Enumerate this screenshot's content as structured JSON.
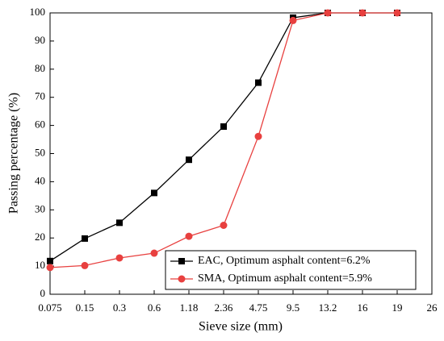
{
  "chart_data": {
    "type": "line",
    "xlabel": "Sieve size (mm)",
    "ylabel": "Passing percentage (%)",
    "categories": [
      "0.075",
      "0.15",
      "0.3",
      "0.6",
      "1.18",
      "2.36",
      "4.75",
      "9.5",
      "13.2",
      "16",
      "19",
      "26"
    ],
    "series": [
      {
        "name": "EAC, Optimum asphalt content=6.2%",
        "color": "#000000",
        "marker": "square",
        "values": [
          11.8,
          19.8,
          25.4,
          36,
          47.8,
          59.6,
          75.2,
          98.3,
          100,
          100,
          100,
          null
        ]
      },
      {
        "name": "SMA, Optimum asphalt content=5.9%",
        "color": "#e8403f",
        "marker": "circle",
        "values": [
          9.5,
          10.2,
          12.9,
          14.6,
          20.6,
          24.5,
          56.1,
          97.3,
          100,
          100,
          100,
          null
        ]
      }
    ],
    "ylim": [
      0,
      100
    ],
    "yticks": [
      0,
      10,
      20,
      30,
      40,
      50,
      60,
      70,
      80,
      90,
      100
    ],
    "legend": "lower right",
    "grid": false
  }
}
